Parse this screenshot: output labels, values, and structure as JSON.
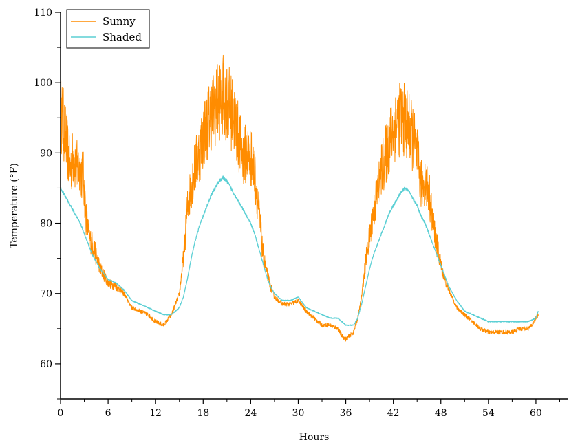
{
  "chart_data": {
    "type": "line",
    "title": "",
    "xlabel": "Hours",
    "ylabel": "Temperature (°F)",
    "xlim": [
      0,
      64
    ],
    "ylim": [
      55,
      110
    ],
    "xticks": [
      0,
      6,
      12,
      18,
      24,
      30,
      36,
      42,
      48,
      54,
      60
    ],
    "yticks": [
      60,
      70,
      80,
      90,
      100,
      110
    ],
    "grid": false,
    "legend_position": "top-left",
    "series": [
      {
        "name": "Sunny",
        "color": "#FF8C00",
        "x": [
          0,
          0.3,
          0.8,
          1.2,
          1.6,
          2.0,
          2.5,
          2.9,
          3.2,
          3.6,
          4.2,
          5.0,
          6.0,
          7.0,
          8.0,
          9.0,
          10.0,
          11.0,
          12.0,
          13.0,
          14.0,
          15.0,
          15.6,
          16.0,
          16.5,
          17.0,
          17.5,
          18.0,
          18.5,
          19.0,
          19.5,
          20.0,
          20.5,
          21.0,
          21.5,
          22.0,
          22.5,
          23.0,
          23.5,
          24.0,
          24.5,
          25.0,
          25.5,
          26.0,
          26.5,
          27.0,
          28.0,
          29.0,
          30.0,
          31.0,
          32.0,
          33.0,
          34.0,
          35.0,
          35.5,
          36.0,
          36.5,
          37.0,
          37.5,
          38.0,
          38.5,
          39.0,
          39.5,
          40.0,
          40.5,
          41.0,
          41.5,
          42.0,
          42.5,
          43.0,
          43.5,
          44.0,
          44.5,
          45.0,
          45.5,
          46.0,
          46.5,
          47.0,
          47.5,
          48.0,
          48.5,
          49.0,
          50.0,
          51.0,
          52.0,
          53.0,
          54.0,
          55.0,
          56.0,
          57.0,
          58.0,
          59.0,
          59.5,
          60.0,
          60.3
        ],
        "values": [
          95.5,
          94.5,
          91.0,
          87.5,
          89.5,
          88.0,
          87.5,
          86.5,
          81.0,
          78.0,
          76.5,
          73.5,
          71.5,
          71.0,
          70.0,
          68.0,
          67.5,
          67.0,
          66.0,
          65.5,
          67.0,
          70.0,
          76.0,
          82.0,
          85.5,
          88.0,
          90.0,
          92.5,
          94.0,
          95.5,
          96.5,
          97.5,
          98.0,
          97.5,
          96.0,
          94.5,
          92.0,
          89.5,
          90.0,
          89.5,
          87.0,
          82.0,
          76.0,
          73.0,
          71.0,
          69.5,
          68.5,
          68.5,
          69.0,
          67.5,
          66.5,
          65.5,
          65.5,
          65.0,
          64.0,
          63.5,
          64.0,
          64.5,
          66.5,
          69.5,
          74.5,
          78.0,
          81.5,
          84.5,
          87.5,
          89.5,
          91.5,
          93.5,
          94.5,
          95.0,
          94.5,
          93.5,
          92.0,
          89.5,
          85.5,
          86.0,
          84.5,
          80.0,
          77.0,
          74.0,
          72.0,
          70.5,
          68.0,
          67.0,
          66.0,
          65.0,
          64.5,
          64.5,
          64.5,
          64.5,
          65.0,
          65.0,
          65.5,
          66.5,
          67.0
        ]
      },
      {
        "name": "Shaded",
        "color": "#5BCFD4",
        "x": [
          0,
          0.5,
          1.0,
          1.5,
          2.0,
          2.5,
          3.0,
          3.5,
          4.0,
          5.0,
          6.0,
          7.0,
          8.0,
          9.0,
          10.0,
          11.0,
          12.0,
          13.0,
          14.0,
          15.0,
          15.5,
          16.0,
          16.5,
          17.0,
          17.5,
          18.0,
          18.5,
          19.0,
          19.5,
          20.0,
          20.5,
          21.0,
          21.5,
          22.0,
          22.5,
          23.0,
          23.5,
          24.0,
          24.5,
          25.0,
          25.5,
          26.0,
          26.5,
          27.0,
          28.0,
          29.0,
          30.0,
          31.0,
          32.0,
          33.0,
          34.0,
          35.0,
          35.5,
          36.0,
          36.5,
          37.0,
          37.5,
          38.0,
          38.5,
          39.0,
          39.5,
          40.0,
          40.5,
          41.0,
          41.5,
          42.0,
          42.5,
          43.0,
          43.5,
          44.0,
          44.5,
          45.0,
          45.5,
          46.0,
          46.5,
          47.0,
          47.5,
          48.0,
          48.5,
          49.0,
          50.0,
          51.0,
          52.0,
          53.0,
          54.0,
          55.0,
          56.0,
          57.0,
          58.0,
          59.0,
          60.0,
          60.3
        ],
        "values": [
          85.0,
          84.0,
          83.0,
          82.0,
          81.0,
          80.0,
          78.5,
          77.0,
          75.5,
          73.5,
          72.0,
          71.5,
          70.5,
          69.0,
          68.5,
          68.0,
          67.5,
          67.0,
          67.0,
          68.0,
          69.5,
          72.0,
          75.0,
          77.5,
          79.5,
          81.0,
          82.5,
          84.0,
          85.0,
          86.0,
          86.5,
          86.0,
          85.0,
          84.0,
          83.0,
          82.0,
          81.0,
          80.0,
          78.5,
          76.5,
          74.5,
          72.5,
          71.0,
          70.0,
          69.0,
          69.0,
          69.5,
          68.0,
          67.5,
          67.0,
          66.5,
          66.5,
          66.0,
          65.5,
          65.5,
          65.5,
          66.5,
          68.5,
          71.0,
          73.5,
          75.5,
          77.0,
          78.5,
          80.0,
          81.5,
          82.5,
          83.5,
          84.5,
          85.0,
          84.5,
          83.5,
          82.5,
          81.0,
          80.0,
          78.5,
          77.0,
          75.5,
          74.0,
          72.5,
          71.0,
          69.0,
          67.5,
          67.0,
          66.5,
          66.0,
          66.0,
          66.0,
          66.0,
          66.0,
          66.0,
          66.5,
          67.5
        ]
      }
    ]
  }
}
